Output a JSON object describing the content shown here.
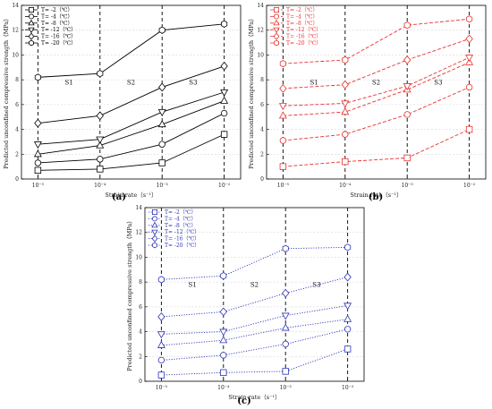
{
  "chart_data": [
    {
      "type": "line",
      "panel_label": "(a)",
      "color": "#000000",
      "dash": "",
      "xlabel": "Strain rate（s⁻¹）",
      "ylabel": "Predicted unconfined compressive strength（MPa）",
      "x": [
        "10⁻⁵",
        "10⁻⁴",
        "10⁻³",
        "10⁻²"
      ],
      "ylim": [
        0,
        14
      ],
      "yticks": [
        "0",
        "2",
        "4",
        "6",
        "8",
        "10",
        "12",
        "14"
      ],
      "regions": [
        "S1",
        "S2",
        "S3"
      ],
      "grid": "horizontal dashed",
      "legend_position": "top-left",
      "series": [
        {
          "name": "T= -2（℃）",
          "marker": "square",
          "values": [
            0.7,
            0.8,
            1.3,
            3.6
          ]
        },
        {
          "name": "T= -4（℃）",
          "marker": "circle",
          "values": [
            1.3,
            1.6,
            2.8,
            5.3
          ]
        },
        {
          "name": "T= -8（℃）",
          "marker": "triangle-up",
          "values": [
            2.0,
            2.7,
            4.4,
            6.3
          ]
        },
        {
          "name": "T= -12（℃）",
          "marker": "triangle-down",
          "values": [
            2.8,
            3.2,
            5.4,
            7.0
          ]
        },
        {
          "name": "T= -16（℃）",
          "marker": "diamond",
          "values": [
            4.5,
            5.1,
            7.4,
            9.1
          ]
        },
        {
          "name": "T= -20（℃）",
          "marker": "hexagon",
          "values": [
            8.2,
            8.5,
            12.0,
            12.5
          ]
        }
      ]
    },
    {
      "type": "line",
      "panel_label": "(b)",
      "color": "#e8322f",
      "dash": "4,2",
      "xlabel": "Strain rate（s⁻¹）",
      "ylabel": "Predicted unconfined compressive strength（MPa）",
      "x": [
        "10⁻⁵",
        "10⁻⁴",
        "10⁻³",
        "10⁻²"
      ],
      "ylim": [
        0,
        14
      ],
      "yticks": [
        "0",
        "2",
        "4",
        "6",
        "8",
        "10",
        "12",
        "14"
      ],
      "regions": [
        "S1",
        "S2",
        "S3"
      ],
      "grid": "horizontal dashed",
      "legend_position": "top-left",
      "series": [
        {
          "name": "T= -2（℃）",
          "marker": "square",
          "values": [
            1.0,
            1.4,
            1.7,
            4.0
          ]
        },
        {
          "name": "T= -4（℃）",
          "marker": "circle",
          "values": [
            3.1,
            3.6,
            5.2,
            7.4
          ]
        },
        {
          "name": "T= -8（℃）",
          "marker": "triangle-up",
          "values": [
            5.1,
            5.4,
            7.2,
            9.4
          ]
        },
        {
          "name": "T= -12（℃）",
          "marker": "triangle-down",
          "values": [
            5.9,
            6.1,
            7.5,
            9.8
          ]
        },
        {
          "name": "T= -16（℃）",
          "marker": "diamond",
          "values": [
            7.3,
            7.6,
            9.6,
            11.3
          ]
        },
        {
          "name": "T= -20（℃）",
          "marker": "hexagon",
          "values": [
            9.3,
            9.6,
            12.4,
            12.9
          ]
        }
      ]
    },
    {
      "type": "line",
      "panel_label": "(c)",
      "color": "#2e35b8",
      "dash": "1.2,1.6",
      "xlabel": "Strain rate（s⁻¹）",
      "ylabel": "Predicted unconfined compressive strength（MPa）",
      "x": [
        "10⁻⁵",
        "10⁻⁴",
        "10⁻³",
        "10⁻²"
      ],
      "ylim": [
        0,
        14
      ],
      "yticks": [
        "0",
        "2",
        "4",
        "6",
        "8",
        "10",
        "12",
        "14"
      ],
      "regions": [
        "S1",
        "S2",
        "S3"
      ],
      "grid": "horizontal dashed",
      "legend_position": "top-left",
      "series": [
        {
          "name": "T= -2（℃）",
          "marker": "square",
          "values": [
            0.5,
            0.7,
            0.8,
            2.6
          ]
        },
        {
          "name": "T= -4（℃）",
          "marker": "circle",
          "values": [
            1.7,
            2.1,
            3.0,
            4.2
          ]
        },
        {
          "name": "T= -8（℃）",
          "marker": "triangle-up",
          "values": [
            2.9,
            3.3,
            4.3,
            5.0
          ]
        },
        {
          "name": "T= -12（℃）",
          "marker": "triangle-down",
          "values": [
            3.8,
            4.0,
            5.3,
            6.1
          ]
        },
        {
          "name": "T= -16（℃）",
          "marker": "diamond",
          "values": [
            5.2,
            5.6,
            7.1,
            8.4
          ]
        },
        {
          "name": "T= -20（℃）",
          "marker": "hexagon",
          "values": [
            8.2,
            8.5,
            10.7,
            10.8
          ]
        }
      ]
    }
  ]
}
